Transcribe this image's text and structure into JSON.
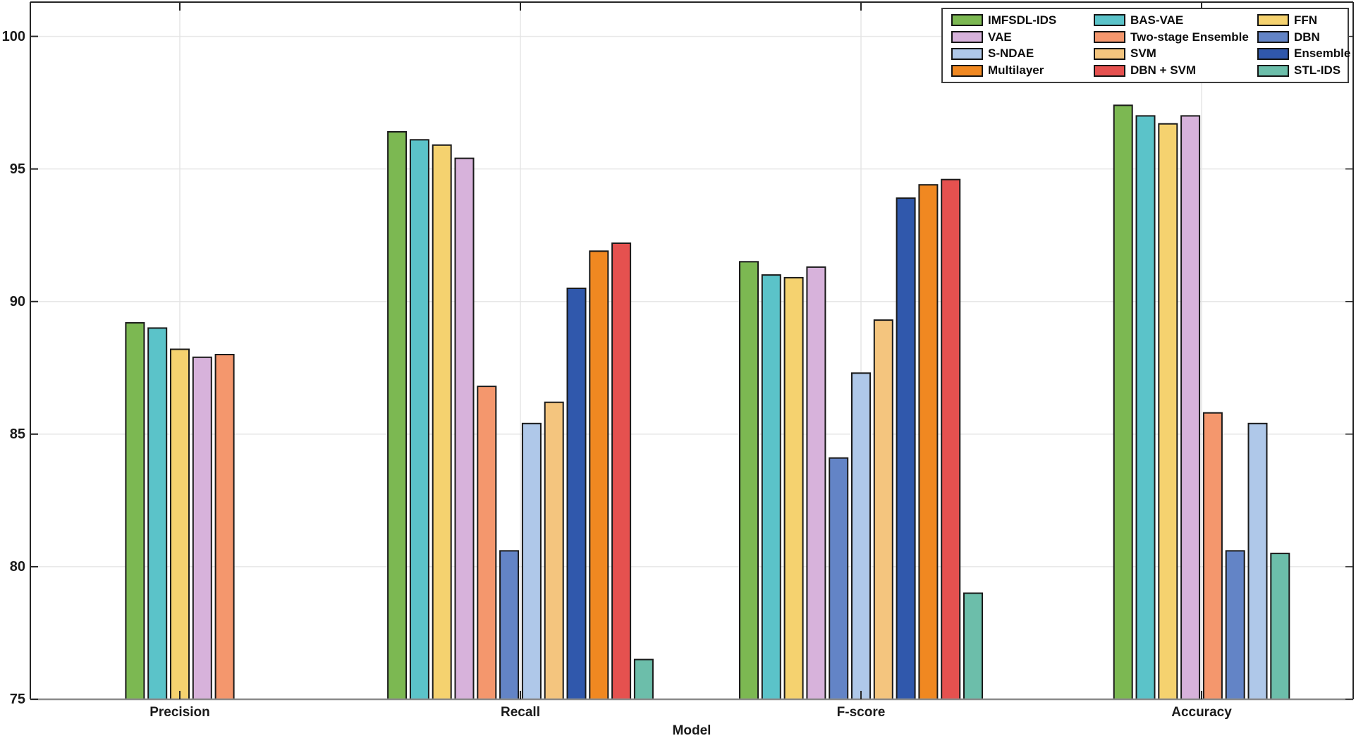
{
  "chart_data": {
    "type": "bar",
    "title": "",
    "xlabel": "Model",
    "ylabel": "",
    "ylim": [
      75,
      100.5
    ],
    "yticks": [
      75,
      80,
      85,
      90,
      95,
      100
    ],
    "grid": "horizontal gridlines at each ytick plus faint vertical gridline at each category center",
    "legend_position": "top-right inside plot, 3 columns x 4 rows",
    "categories": [
      "Precision",
      "Recall",
      "F-score",
      "Accuracy"
    ],
    "series": [
      {
        "name": "IMFSDL-IDS",
        "color": "#7CB852",
        "values": [
          89.2,
          96.4,
          91.5,
          97.4
        ]
      },
      {
        "name": "BAS-VAE",
        "color": "#5BC3C9",
        "values": [
          89.0,
          96.1,
          91.0,
          97.0
        ]
      },
      {
        "name": "FFN",
        "color": "#F5D26F",
        "values": [
          88.2,
          95.9,
          90.9,
          96.7
        ]
      },
      {
        "name": "VAE",
        "color": "#D7B2DB",
        "values": [
          87.9,
          95.4,
          91.3,
          97.0
        ]
      },
      {
        "name": "Two-stage Ensemble",
        "color": "#F4976D",
        "values": [
          88.0,
          86.8,
          null,
          85.8
        ]
      },
      {
        "name": "DBN",
        "color": "#6384C6",
        "values": [
          null,
          80.6,
          84.1,
          80.6
        ]
      },
      {
        "name": "S-NDAE",
        "color": "#AFC8E9",
        "values": [
          null,
          85.4,
          87.3,
          85.4
        ]
      },
      {
        "name": "SVM",
        "color": "#F4C57E",
        "values": [
          null,
          86.2,
          89.3,
          null
        ]
      },
      {
        "name": "Ensemble",
        "color": "#3058AC",
        "values": [
          null,
          90.5,
          93.9,
          null
        ]
      },
      {
        "name": "Multilayer",
        "color": "#F08821",
        "values": [
          null,
          91.9,
          94.4,
          null
        ]
      },
      {
        "name": "DBN + SVM",
        "color": "#E5514F",
        "values": [
          null,
          92.2,
          94.6,
          null
        ]
      },
      {
        "name": "STL-IDS",
        "color": "#6CBEAA",
        "values": [
          null,
          76.5,
          79.0,
          80.5
        ]
      }
    ],
    "legend_columns": [
      [
        "IMFSDL-IDS",
        "VAE",
        "S-NDAE",
        "Multilayer"
      ],
      [
        "BAS-VAE",
        "Two-stage Ensemble",
        "SVM",
        "DBN + SVM"
      ],
      [
        "FFN",
        "DBN",
        "Ensemble",
        "STL-IDS"
      ]
    ],
    "colors": {
      "axis_box": "#262626",
      "baseline": "#8a8a8a",
      "gridline": "#e7e7e7",
      "vertical_gridline": "#e2e2e2",
      "bar_edge": "#1a1a1a",
      "text": "#1a1a1a"
    }
  }
}
